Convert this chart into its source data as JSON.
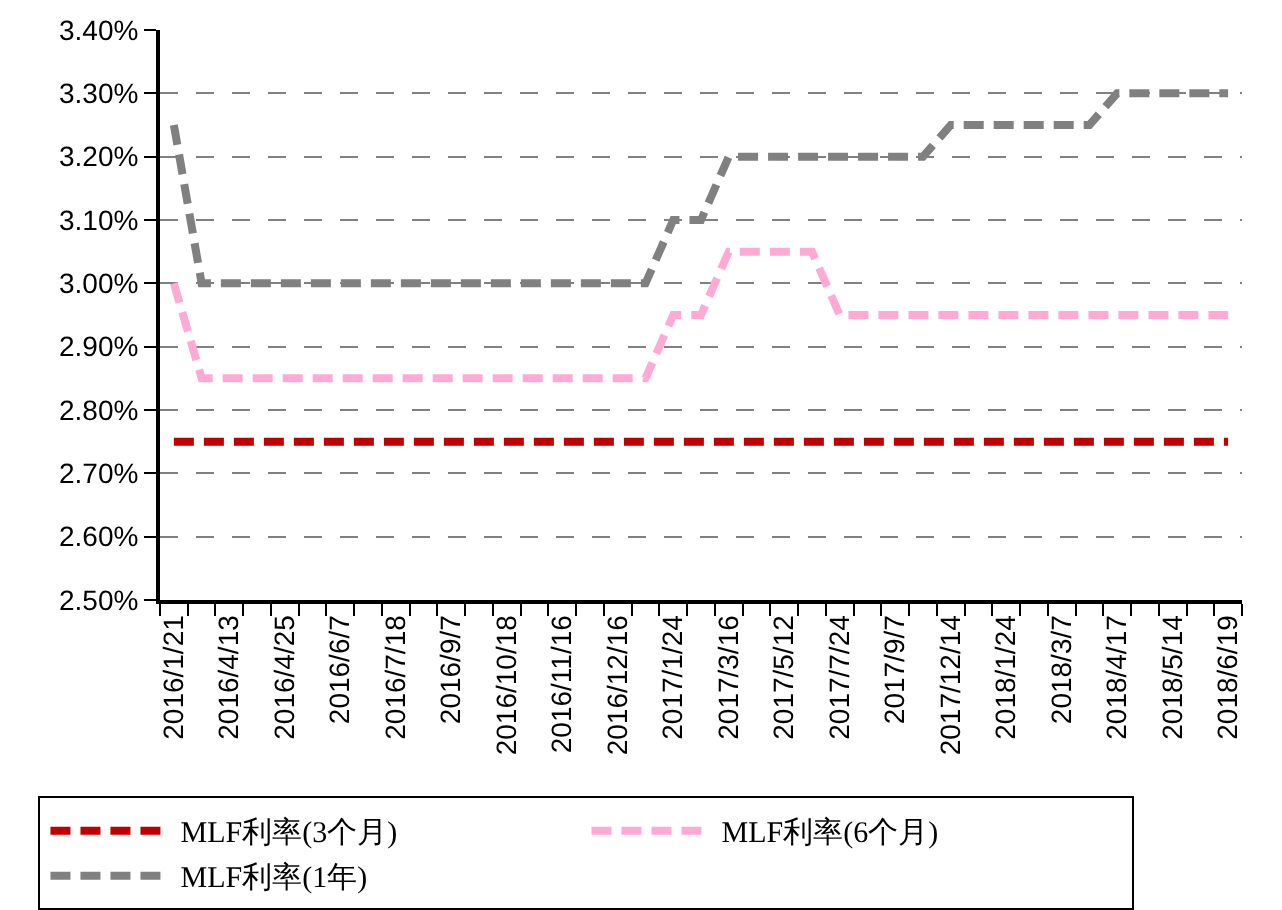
{
  "chart_data": {
    "type": "line",
    "categories": [
      "2016/1/21",
      null,
      "2016/4/13",
      null,
      "2016/4/25",
      null,
      "2016/6/7",
      null,
      "2016/7/18",
      null,
      "2016/9/7",
      null,
      "2016/10/18",
      null,
      "2016/11/16",
      null,
      "2016/12/16",
      null,
      "2017/1/24",
      null,
      "2017/3/16",
      null,
      "2017/5/12",
      null,
      "2017/7/24",
      null,
      "2017/9/7",
      null,
      "2017/12/14",
      null,
      "2018/1/24",
      null,
      "2018/3/7",
      null,
      "2018/4/17",
      null,
      "2018/5/14",
      null,
      "2018/6/19"
    ],
    "series": [
      {
        "name": "MLF利率(3个月)",
        "color": "#c00000",
        "values": [
          2.75,
          2.75,
          2.75,
          2.75,
          2.75,
          2.75,
          2.75,
          2.75,
          2.75,
          2.75,
          2.75,
          2.75,
          2.75,
          2.75,
          2.75,
          2.75,
          2.75,
          2.75,
          2.75,
          2.75,
          2.75,
          2.75,
          2.75,
          2.75,
          2.75,
          2.75,
          2.75,
          2.75,
          2.75,
          2.75,
          2.75,
          2.75,
          2.75,
          2.75,
          2.75,
          2.75,
          2.75,
          2.75,
          2.75
        ]
      },
      {
        "name": "MLF利率(6个月)",
        "color": "#ffaad4",
        "values": [
          3.0,
          2.85,
          2.85,
          2.85,
          2.85,
          2.85,
          2.85,
          2.85,
          2.85,
          2.85,
          2.85,
          2.85,
          2.85,
          2.85,
          2.85,
          2.85,
          2.85,
          2.85,
          2.95,
          2.95,
          3.05,
          3.05,
          3.05,
          3.05,
          2.95,
          2.95,
          2.95,
          2.95,
          2.95,
          2.95,
          2.95,
          2.95,
          2.95,
          2.95,
          2.95,
          2.95,
          2.95,
          2.95,
          2.95
        ]
      },
      {
        "name": "MLF利率(1年)",
        "color": "#808080",
        "values": [
          3.25,
          3.0,
          3.0,
          3.0,
          3.0,
          3.0,
          3.0,
          3.0,
          3.0,
          3.0,
          3.0,
          3.0,
          3.0,
          3.0,
          3.0,
          3.0,
          3.0,
          3.0,
          3.1,
          3.1,
          3.2,
          3.2,
          3.2,
          3.2,
          3.2,
          3.2,
          3.2,
          3.2,
          3.25,
          3.25,
          3.25,
          3.25,
          3.25,
          3.25,
          3.3,
          3.3,
          3.3,
          3.3,
          3.3
        ]
      }
    ],
    "ylim": [
      2.5,
      3.4
    ],
    "yticks": [
      {
        "value": 2.5,
        "label": "2.50%"
      },
      {
        "value": 2.6,
        "label": "2.60%"
      },
      {
        "value": 2.7,
        "label": "2.70%"
      },
      {
        "value": 2.8,
        "label": "2.80%"
      },
      {
        "value": 2.9,
        "label": "2.90%"
      },
      {
        "value": 3.0,
        "label": "3.00%"
      },
      {
        "value": 3.1,
        "label": "3.10%"
      },
      {
        "value": 3.2,
        "label": "3.20%"
      },
      {
        "value": 3.3,
        "label": "3.30%"
      },
      {
        "value": 3.4,
        "label": "3.40%"
      }
    ],
    "grid": "y",
    "legend": "bottom",
    "marker": "none",
    "line_style": "dashed"
  }
}
